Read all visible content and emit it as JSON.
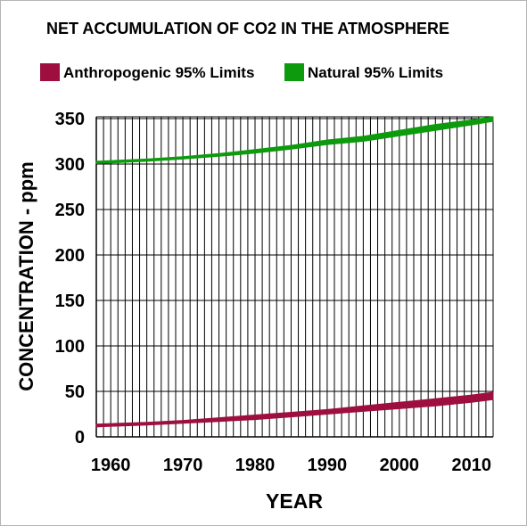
{
  "chart_data": {
    "type": "area",
    "title": "NET ACCUMULATION OF CO2 IN THE ATMOSPHERE",
    "xlabel": "YEAR",
    "ylabel": "CONCENTRATION - ppm",
    "xlim": [
      1958,
      2013
    ],
    "ylim": [
      0,
      350
    ],
    "x_ticks": [
      1960,
      1970,
      1980,
      1990,
      2000,
      2010
    ],
    "y_ticks": [
      0,
      50,
      100,
      150,
      200,
      250,
      300,
      350
    ],
    "grid": true,
    "legend_position": "top",
    "series": [
      {
        "name": "Anthropogenic 95% Limits",
        "color": "#9e0f3f",
        "x": [
          1958,
          1965,
          1970,
          1975,
          1980,
          1985,
          1990,
          1995,
          2000,
          2005,
          2010,
          2013
        ],
        "lower": [
          11,
          13,
          15,
          17,
          19,
          22,
          25,
          28,
          31,
          34,
          38,
          41
        ],
        "upper": [
          14,
          16,
          18,
          21,
          24,
          27,
          30,
          34,
          38,
          42,
          46,
          49
        ]
      },
      {
        "name": "Natural 95% Limits",
        "color": "#0d9b0d",
        "x": [
          1958,
          1965,
          1970,
          1975,
          1980,
          1985,
          1990,
          1995,
          2000,
          2005,
          2010,
          2013
        ],
        "lower": [
          300.5,
          303,
          305.5,
          308.5,
          312,
          316.5,
          321.5,
          325,
          331,
          337,
          343,
          347
        ],
        "upper": [
          303,
          305.5,
          308,
          311.5,
          316,
          320.5,
          326.5,
          330.5,
          337,
          343.5,
          348.5,
          352
        ]
      }
    ]
  }
}
